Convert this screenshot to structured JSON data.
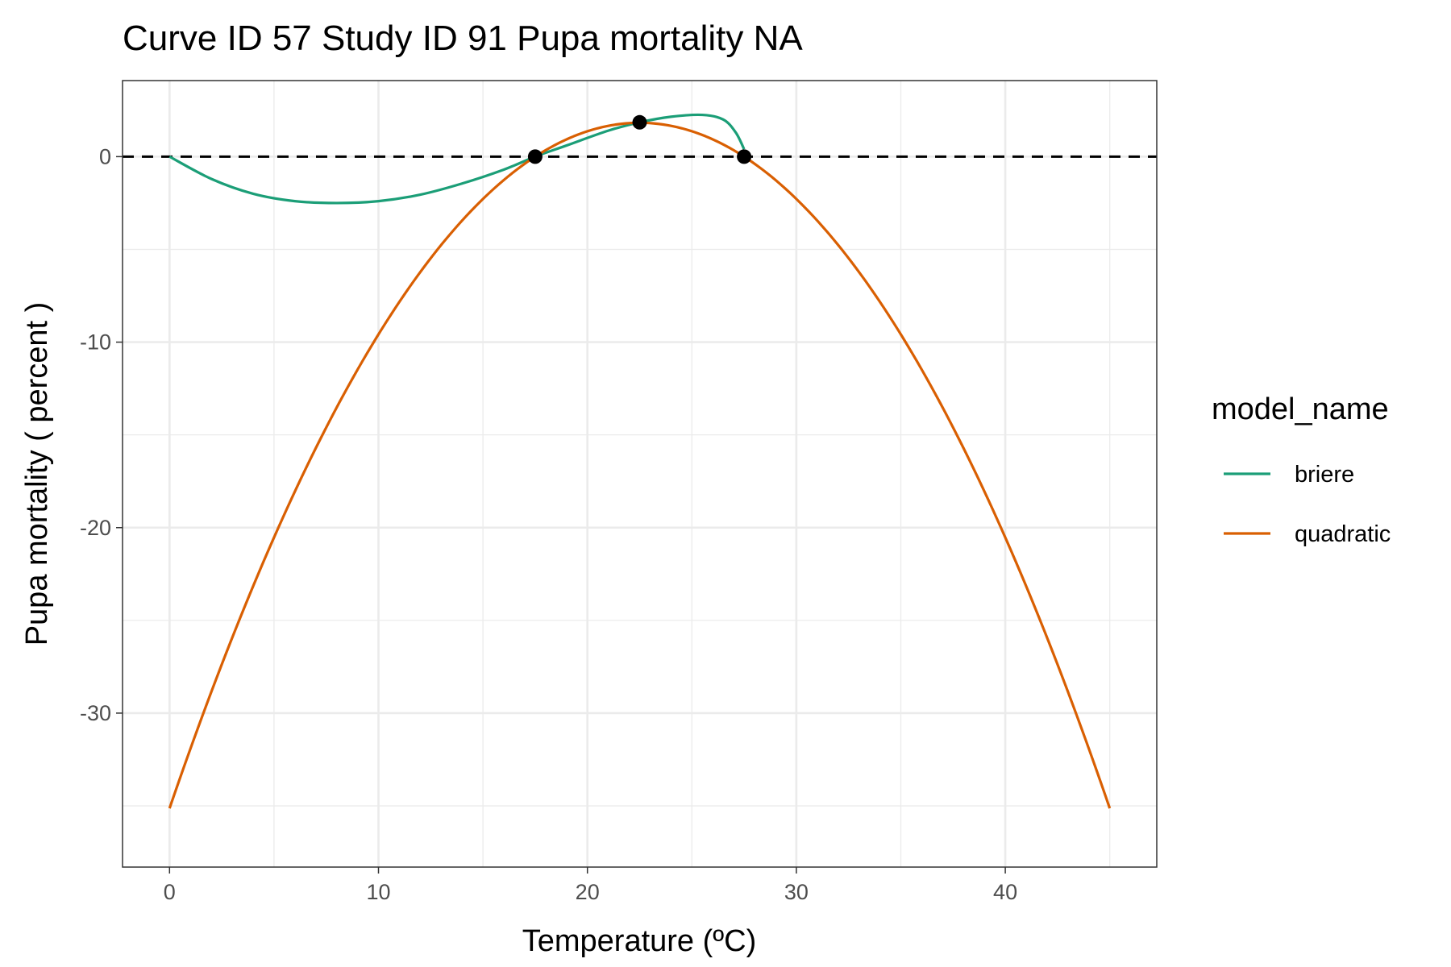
{
  "chart_data": {
    "type": "line",
    "title": "Curve ID 57 Study ID 91 Pupa mortality NA",
    "xlabel": "Temperature (ºC)",
    "ylabel": "Pupa mortality ( percent )",
    "xlim": [
      -2.25,
      47.25
    ],
    "ylim": [
      -38.3,
      4.1
    ],
    "x_ticks": [
      0,
      10,
      20,
      30,
      40
    ],
    "y_ticks": [
      0,
      -10,
      -20,
      -30
    ],
    "x_tick_labels": [
      "0",
      "10",
      "20",
      "30",
      "40"
    ],
    "y_tick_labels": [
      "0",
      "-10",
      "-20",
      "-30"
    ],
    "grid": true,
    "reference_line": {
      "y": 0,
      "style": "dashed",
      "color": "#000000"
    },
    "legend": {
      "title": "model_name",
      "position": "right"
    },
    "series": [
      {
        "name": "briere",
        "color": "#1b9e77",
        "points": [
          {
            "x": 0,
            "y": 0
          },
          {
            "x": 2,
            "y": -1.2
          },
          {
            "x": 4,
            "y": -2
          },
          {
            "x": 6,
            "y": -2.4
          },
          {
            "x": 8,
            "y": -2.5
          },
          {
            "x": 10,
            "y": -2.4
          },
          {
            "x": 12,
            "y": -2.05
          },
          {
            "x": 14,
            "y": -1.45
          },
          {
            "x": 16,
            "y": -0.7
          },
          {
            "x": 17.5,
            "y": 0
          },
          {
            "x": 19,
            "y": 0.6
          },
          {
            "x": 21,
            "y": 1.4
          },
          {
            "x": 22.5,
            "y": 1.85
          },
          {
            "x": 24,
            "y": 2.15
          },
          {
            "x": 25.5,
            "y": 2.25
          },
          {
            "x": 26.5,
            "y": 2
          },
          {
            "x": 27.1,
            "y": 1.3
          },
          {
            "x": 27.5,
            "y": 0.4
          }
        ]
      },
      {
        "name": "quadratic",
        "color": "#d95f02",
        "curve": {
          "form": "y = -0.073*(x-17.5)*(x-27.5)",
          "x_start": 0,
          "x_end": 45
        },
        "points": [
          {
            "x": 0,
            "y": -36.5
          },
          {
            "x": 5,
            "y": -20.8
          },
          {
            "x": 10,
            "y": -9.8
          },
          {
            "x": 15,
            "y": -2.3
          },
          {
            "x": 17.5,
            "y": 0
          },
          {
            "x": 20,
            "y": 1.4
          },
          {
            "x": 22.5,
            "y": 1.8
          },
          {
            "x": 25,
            "y": 1.4
          },
          {
            "x": 27.5,
            "y": 0
          },
          {
            "x": 30,
            "y": -2.3
          },
          {
            "x": 35,
            "y": -9.8
          },
          {
            "x": 40,
            "y": -20.8
          },
          {
            "x": 45,
            "y": -36.5
          }
        ]
      }
    ],
    "points": [
      {
        "x": 17.5,
        "y": 0
      },
      {
        "x": 22.5,
        "y": 1.85
      },
      {
        "x": 27.5,
        "y": 0
      }
    ]
  }
}
